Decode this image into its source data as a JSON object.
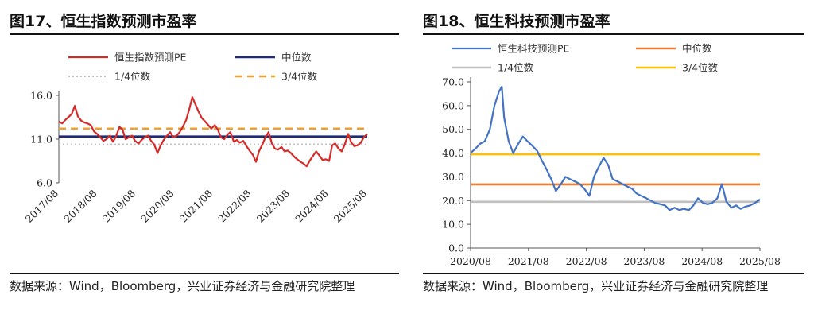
{
  "left": {
    "title": "图17、恒生指数预测市盈率",
    "source": "数据来源：Wind，Bloomberg，兴业证券经济与金融研究院整理"
  },
  "right": {
    "title": "图18、恒生科技预测市盈率",
    "source": "数据来源：Wind，Bloomberg，兴业证券经济与金融研究院整理"
  },
  "chart_data": [
    {
      "type": "line",
      "title": "图17、恒生指数预测市盈率",
      "xlabel": "",
      "ylabel": "",
      "ylim": [
        6.0,
        16.0
      ],
      "y_ticks": [
        6.0,
        11.0,
        16.0
      ],
      "y_tick_labels": [
        "6.0",
        "11.0",
        "16.0"
      ],
      "x_tick_labels": [
        "2017/08",
        "2018/08",
        "2019/08",
        "2020/08",
        "2021/08",
        "2022/08",
        "2023/08",
        "2024/08",
        "2025/08"
      ],
      "x_range": [
        2017.58,
        2025.67
      ],
      "grid": false,
      "legend_position": "top",
      "series": [
        {
          "name": "恒生指数预测PE",
          "color": "#d62a27",
          "style": "solid",
          "x": [
            2017.58,
            2017.67,
            2017.75,
            2017.83,
            2017.92,
            2018.0,
            2018.08,
            2018.17,
            2018.25,
            2018.33,
            2018.42,
            2018.5,
            2018.58,
            2018.67,
            2018.75,
            2018.83,
            2018.92,
            2019.0,
            2019.08,
            2019.17,
            2019.25,
            2019.33,
            2019.42,
            2019.5,
            2019.58,
            2019.67,
            2019.75,
            2019.83,
            2019.92,
            2020.0,
            2020.08,
            2020.17,
            2020.25,
            2020.33,
            2020.42,
            2020.5,
            2020.58,
            2020.67,
            2020.75,
            2020.83,
            2020.92,
            2021.0,
            2021.08,
            2021.17,
            2021.25,
            2021.33,
            2021.42,
            2021.5,
            2021.58,
            2021.67,
            2021.75,
            2021.83,
            2021.92,
            2022.0,
            2022.08,
            2022.17,
            2022.25,
            2022.33,
            2022.42,
            2022.5,
            2022.58,
            2022.67,
            2022.75,
            2022.83,
            2022.92,
            2023.0,
            2023.08,
            2023.17,
            2023.25,
            2023.33,
            2023.42,
            2023.5,
            2023.58,
            2023.67,
            2023.75,
            2023.83,
            2023.92,
            2024.0,
            2024.08,
            2024.17,
            2024.25,
            2024.33,
            2024.42,
            2024.5,
            2024.58,
            2024.67,
            2024.75,
            2024.83,
            2024.92,
            2025.0,
            2025.08,
            2025.17,
            2025.25,
            2025.33,
            2025.42,
            2025.5,
            2025.58,
            2025.67
          ],
          "values": [
            13.0,
            12.8,
            13.2,
            13.5,
            13.9,
            14.8,
            13.6,
            13.1,
            12.9,
            12.8,
            12.6,
            11.9,
            11.6,
            11.2,
            10.8,
            11.0,
            11.4,
            10.7,
            11.3,
            12.4,
            12.1,
            11.0,
            11.2,
            11.4,
            10.8,
            10.5,
            10.9,
            11.2,
            11.4,
            10.8,
            10.4,
            9.4,
            10.3,
            10.9,
            11.4,
            11.8,
            11.2,
            11.4,
            11.8,
            12.4,
            13.2,
            14.4,
            15.8,
            14.9,
            14.1,
            13.4,
            13.0,
            12.6,
            12.2,
            12.6,
            12.1,
            11.2,
            11.0,
            11.5,
            11.8,
            10.7,
            10.9,
            10.6,
            10.8,
            10.2,
            9.7,
            9.2,
            8.4,
            9.6,
            10.4,
            11.2,
            11.8,
            10.5,
            9.9,
            9.8,
            10.1,
            9.6,
            9.7,
            9.4,
            9.0,
            8.7,
            8.4,
            8.2,
            7.9,
            8.6,
            9.1,
            9.6,
            9.1,
            8.6,
            8.7,
            8.5,
            10.3,
            10.5,
            9.9,
            9.6,
            10.4,
            11.6,
            10.6,
            10.2,
            10.3,
            10.6,
            11.2,
            11.6
          ]
        },
        {
          "name": "中位数",
          "color": "#1f2a7a",
          "style": "solid",
          "value": 11.3
        },
        {
          "name": "1/4位数",
          "color": "#bdbdbd",
          "style": "dotted",
          "value": 10.4
        },
        {
          "name": "3/4位数",
          "color": "#f0a030",
          "style": "dashed",
          "value": 12.2
        }
      ]
    },
    {
      "type": "line",
      "title": "图18、恒生科技预测市盈率",
      "xlabel": "",
      "ylabel": "",
      "ylim": [
        0,
        70
      ],
      "y_ticks": [
        0,
        10,
        20,
        30,
        40,
        50,
        60,
        70
      ],
      "y_tick_labels": [
        "0.0",
        "10.0",
        "20.0",
        "30.0",
        "40.0",
        "50.0",
        "60.0",
        "70.0"
      ],
      "x_tick_labels": [
        "2020/08",
        "2021/08",
        "2022/08",
        "2023/08",
        "2024/08",
        "2025/08"
      ],
      "x_range": [
        2020.58,
        2025.67
      ],
      "grid": false,
      "legend_position": "top",
      "series": [
        {
          "name": "恒生科技预测PE",
          "color": "#4472c4",
          "style": "solid",
          "x": [
            2020.58,
            2020.67,
            2020.75,
            2020.83,
            2020.92,
            2021.0,
            2021.08,
            2021.13,
            2021.17,
            2021.25,
            2021.33,
            2021.42,
            2021.5,
            2021.58,
            2021.67,
            2021.75,
            2021.83,
            2021.92,
            2022.0,
            2022.08,
            2022.17,
            2022.25,
            2022.33,
            2022.42,
            2022.5,
            2022.58,
            2022.67,
            2022.75,
            2022.83,
            2022.92,
            2023.0,
            2023.08,
            2023.17,
            2023.25,
            2023.33,
            2023.42,
            2023.5,
            2023.58,
            2023.67,
            2023.75,
            2023.83,
            2023.92,
            2024.0,
            2024.08,
            2024.17,
            2024.25,
            2024.33,
            2024.42,
            2024.5,
            2024.58,
            2024.67,
            2024.75,
            2024.83,
            2024.92,
            2025.0,
            2025.08,
            2025.17,
            2025.25,
            2025.33,
            2025.42,
            2025.5,
            2025.58,
            2025.67
          ],
          "values": [
            40.0,
            42.0,
            44.0,
            45.0,
            50.0,
            60.0,
            66.0,
            68.0,
            55.0,
            45.0,
            40.0,
            44.0,
            47.0,
            45.0,
            43.0,
            41.0,
            37.0,
            33.0,
            29.0,
            24.0,
            27.0,
            30.0,
            29.0,
            28.0,
            27.0,
            25.0,
            22.0,
            30.0,
            34.0,
            38.0,
            35.0,
            29.0,
            28.0,
            27.0,
            26.0,
            25.0,
            23.0,
            22.0,
            21.0,
            20.0,
            19.0,
            18.5,
            18.0,
            16.0,
            17.0,
            16.0,
            16.5,
            16.0,
            18.0,
            21.0,
            19.0,
            18.5,
            19.0,
            21.0,
            27.0,
            19.5,
            17.0,
            18.0,
            16.5,
            17.5,
            18.0,
            19.0,
            20.5
          ]
        },
        {
          "name": "中位数",
          "color": "#ed7d31",
          "style": "solid",
          "value": 26.8
        },
        {
          "name": "1/4位数",
          "color": "#bfbfbf",
          "style": "solid",
          "value": 19.5
        },
        {
          "name": "3/4位数",
          "color": "#ffc000",
          "style": "solid",
          "value": 39.5
        }
      ]
    }
  ]
}
